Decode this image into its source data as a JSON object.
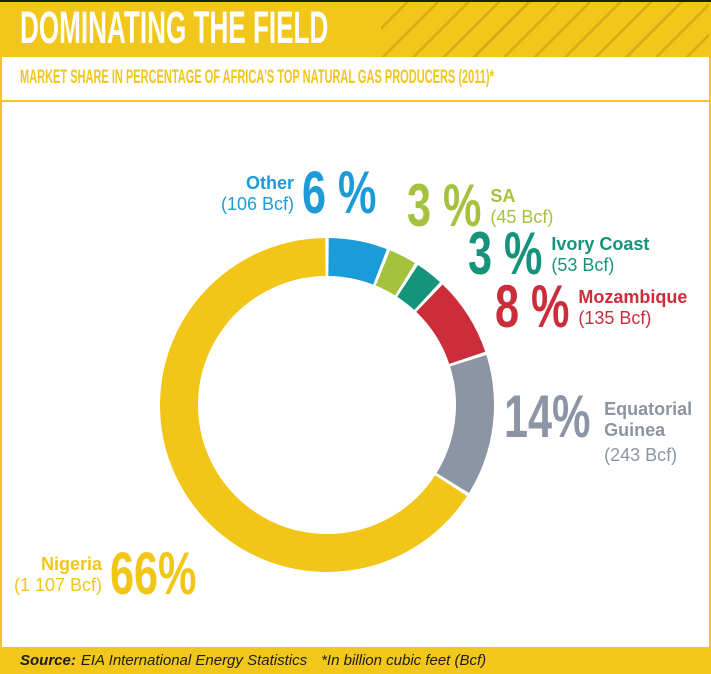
{
  "header": {
    "title": "DOMINATING THE FIELD"
  },
  "subtitle": "MARKET SHARE IN PERCENTAGE OF AFRICA'S TOP NATURAL GAS PRODUCERS (2011)*",
  "footer": {
    "source_label": "Source:",
    "source_text": "EIA International Energy Statistics",
    "note": "*In billion cubic feet (Bcf)"
  },
  "colors": {
    "accent_yellow": "#F2C71B",
    "header_stripe": "#CD8F0C",
    "title_text": "#FFFFFF",
    "footer_text": "#1D1D1B",
    "background": "#FFFFFF"
  },
  "chart_data": {
    "type": "pie",
    "donut": true,
    "title": "DOMINATING THE FIELD",
    "subtitle": "MARKET SHARE IN PERCENTAGE OF AFRICA'S TOP NATURAL GAS PRODUCERS (2011)*",
    "unit_note": "*In billion cubic feet (Bcf)",
    "start_angle_deg": 0,
    "direction": "clockwise",
    "segments": [
      {
        "label": "Other",
        "pct": 6,
        "pct_display": "6 %",
        "value_bcf": 106,
        "value_display": "(106 Bcf)",
        "color": "#1B9CD8"
      },
      {
        "label": "SA",
        "pct": 3,
        "pct_display": "3 %",
        "value_bcf": 45,
        "value_display": "(45 Bcf)",
        "color": "#A4C23D"
      },
      {
        "label": "Ivory Coast",
        "pct": 3,
        "pct_display": "3 %",
        "value_bcf": 53,
        "value_display": "(53 Bcf)",
        "color": "#16947B"
      },
      {
        "label": "Mozambique",
        "pct": 8,
        "pct_display": "8 %",
        "value_bcf": 135,
        "value_display": "(135 Bcf)",
        "color": "#CB2E3A"
      },
      {
        "label": "Equatorial Guinea",
        "pct": 14,
        "pct_display": "14%",
        "value_bcf": 243,
        "value_display": "(243 Bcf)",
        "color": "#8C95A3",
        "name_lines": [
          "Equatorial",
          "Guinea"
        ]
      },
      {
        "label": "Nigeria",
        "pct": 66,
        "pct_display": "66%",
        "value_bcf": 1107,
        "value_display": "(1 107 Bcf)",
        "color": "#F2C619"
      }
    ]
  }
}
